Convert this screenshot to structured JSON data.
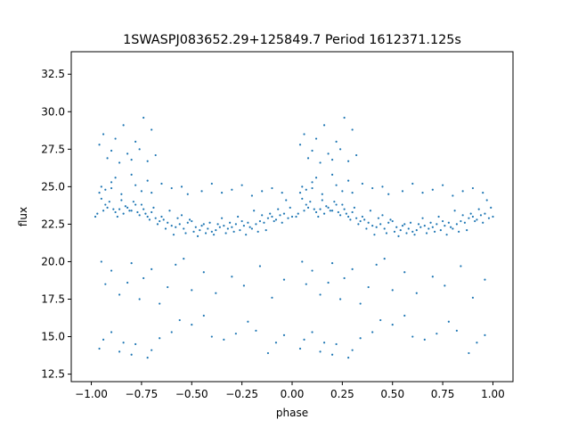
{
  "chart_data": {
    "type": "scatter",
    "title": "1SWASPJ083652.29+125849.7 Period 1612371.125s",
    "xlabel": "phase",
    "ylabel": "flux",
    "xlim": [
      -1.1,
      1.1
    ],
    "ylim": [
      12.0,
      34.0
    ],
    "xticks": [
      -1.0,
      -0.75,
      -0.5,
      -0.25,
      0.0,
      0.25,
      0.5,
      0.75,
      1.0
    ],
    "xtick_labels": [
      "−1.00",
      "−0.75",
      "−0.50",
      "−0.25",
      "0.00",
      "0.25",
      "0.50",
      "0.75",
      "1.00"
    ],
    "yticks": [
      12.5,
      15.0,
      17.5,
      20.0,
      22.5,
      25.0,
      27.5,
      30.0,
      32.5
    ],
    "ytick_labels": [
      "12.5",
      "15.0",
      "17.5",
      "20.0",
      "22.5",
      "25.0",
      "27.5",
      "30.0",
      "32.5"
    ],
    "grid": false,
    "marker_color": "#1f77b4",
    "series": [
      {
        "phase_repeat": 1.0,
        "x": [
          -0.98,
          -0.96,
          -0.94,
          -0.92,
          -0.9,
          -0.88,
          -0.86,
          -0.84,
          -0.82,
          -0.8,
          -0.78,
          -0.76,
          -0.74,
          -0.72,
          -0.7,
          -0.68,
          -0.66,
          -0.64,
          -0.62,
          -0.6,
          -0.58,
          -0.56,
          -0.54,
          -0.52,
          -0.5,
          -0.48,
          -0.46,
          -0.44,
          -0.42,
          -0.4,
          -0.38,
          -0.36,
          -0.34,
          -0.32,
          -0.3,
          -0.28,
          -0.26,
          -0.24,
          -0.22,
          -0.2,
          -0.18,
          -0.16,
          -0.14,
          -0.12,
          -0.1,
          -0.08,
          -0.06,
          -0.04,
          -0.02,
          0.0,
          -0.97,
          -0.95,
          -0.93,
          -0.91,
          -0.89,
          -0.87,
          -0.85,
          -0.83,
          -0.81,
          -0.79,
          -0.77,
          -0.75,
          -0.73,
          -0.71,
          -0.69,
          -0.67,
          -0.65,
          -0.63,
          -0.61,
          -0.59,
          -0.57,
          -0.55,
          -0.53,
          -0.51,
          -0.49,
          -0.47,
          -0.45,
          -0.43,
          -0.41,
          -0.39,
          -0.37,
          -0.35,
          -0.33,
          -0.31,
          -0.29,
          -0.27,
          -0.25,
          -0.23,
          -0.21,
          -0.19,
          -0.17,
          -0.15,
          -0.13,
          -0.11,
          -0.09,
          -0.07,
          -0.05,
          -0.03,
          -0.01,
          -0.95,
          -0.93,
          -0.9,
          -0.88,
          -0.85,
          -0.8,
          -0.78,
          -0.75,
          -0.72,
          -0.7,
          -0.65,
          -0.6,
          -0.55,
          -0.52,
          -0.45,
          -0.4,
          -0.35,
          -0.3,
          -0.25,
          -0.2,
          -0.15,
          -0.1,
          -0.05,
          -0.96,
          -0.94,
          -0.9,
          -0.86,
          -0.84,
          -0.8,
          -0.78,
          -0.72,
          -0.7,
          -0.66,
          -0.6,
          -0.56,
          -0.5,
          -0.44,
          -0.4,
          -0.34,
          -0.28,
          -0.22,
          -0.18,
          -0.12,
          -0.08,
          -0.04,
          -0.95,
          -0.93,
          -0.9,
          -0.86,
          -0.82,
          -0.8,
          -0.76,
          -0.74,
          -0.7,
          -0.66,
          -0.62,
          -0.58,
          -0.54,
          -0.5,
          -0.44,
          -0.38,
          -0.3,
          -0.24,
          -0.16,
          -0.1,
          -0.04,
          -0.96,
          -0.94,
          -0.92,
          -0.9,
          -0.88,
          -0.86,
          -0.84,
          -0.82,
          -0.8,
          -0.78,
          -0.76,
          -0.74,
          -0.72,
          -0.7,
          -0.68
        ],
        "y": [
          23.0,
          24.6,
          23.4,
          23.6,
          24.9,
          23.3,
          23.5,
          23.2,
          23.6,
          23.4,
          23.8,
          23.1,
          23.5,
          23.0,
          23.3,
          22.9,
          22.7,
          22.8,
          22.6,
          22.4,
          22.3,
          22.5,
          22.2,
          22.6,
          22.7,
          22.3,
          22.1,
          22.5,
          22.2,
          22.0,
          22.1,
          22.3,
          22.4,
          22.2,
          22.3,
          22.5,
          22.1,
          22.4,
          22.6,
          22.2,
          22.5,
          22.7,
          22.6,
          22.9,
          23.0,
          22.8,
          23.1,
          23.2,
          22.9,
          23.0,
          23.2,
          24.2,
          23.8,
          24.0,
          23.5,
          23.0,
          24.1,
          23.7,
          23.4,
          24.0,
          23.3,
          23.8,
          23.2,
          22.8,
          23.6,
          22.5,
          23.0,
          22.2,
          23.4,
          21.8,
          22.9,
          23.1,
          21.9,
          22.8,
          22.0,
          21.7,
          22.4,
          21.9,
          22.6,
          21.8,
          22.5,
          22.9,
          21.9,
          22.6,
          22.0,
          23.0,
          22.7,
          21.8,
          22.3,
          23.4,
          22.0,
          23.1,
          22.1,
          23.2,
          22.7,
          23.5,
          22.6,
          24.1,
          23.6,
          25.0,
          24.8,
          25.3,
          25.6,
          24.5,
          25.8,
          25.1,
          24.7,
          25.4,
          24.6,
          25.2,
          24.9,
          25.0,
          24.5,
          24.7,
          25.2,
          24.6,
          24.8,
          25.1,
          24.4,
          24.7,
          24.9,
          24.6,
          14.2,
          14.8,
          15.3,
          14.0,
          14.6,
          13.8,
          14.5,
          13.6,
          14.1,
          14.9,
          15.3,
          16.1,
          15.8,
          16.4,
          15.0,
          14.8,
          15.2,
          16.0,
          15.4,
          13.9,
          14.6,
          15.1,
          20.0,
          18.5,
          19.4,
          17.8,
          18.6,
          19.9,
          17.5,
          18.9,
          19.5,
          17.2,
          18.3,
          19.8,
          20.2,
          18.1,
          19.3,
          17.9,
          19.0,
          18.4,
          19.7,
          17.6,
          18.8,
          27.8,
          28.5,
          26.9,
          27.4,
          28.2,
          26.6,
          29.1,
          27.2,
          26.8,
          28.0,
          27.5,
          29.6,
          26.7,
          28.8,
          27.1
        ]
      }
    ]
  }
}
